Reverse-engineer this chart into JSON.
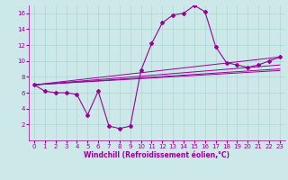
{
  "background_color": "#cce8e8",
  "line_color": "#990099",
  "marker": "D",
  "marker_size": 2,
  "xlabel": "Windchill (Refroidissement éolien,°C)",
  "xlim": [
    -0.5,
    23.5
  ],
  "ylim": [
    0,
    17
  ],
  "yticks": [
    2,
    4,
    6,
    8,
    10,
    12,
    14,
    16
  ],
  "xticks": [
    0,
    1,
    2,
    3,
    4,
    5,
    6,
    7,
    8,
    9,
    10,
    11,
    12,
    13,
    14,
    15,
    16,
    17,
    18,
    19,
    20,
    21,
    22,
    23
  ],
  "grid_color": "#aed4d4",
  "series": [
    [
      0,
      7.0
    ],
    [
      1,
      6.2
    ],
    [
      2,
      6.0
    ],
    [
      3,
      6.0
    ],
    [
      4,
      5.8
    ],
    [
      5,
      3.2
    ],
    [
      6,
      6.2
    ],
    [
      7,
      1.8
    ],
    [
      8,
      1.5
    ],
    [
      9,
      1.8
    ],
    [
      10,
      8.8
    ],
    [
      11,
      12.2
    ],
    [
      12,
      14.8
    ],
    [
      13,
      15.8
    ],
    [
      14,
      16.0
    ],
    [
      15,
      17.0
    ],
    [
      16,
      16.2
    ],
    [
      17,
      11.8
    ],
    [
      18,
      9.8
    ],
    [
      19,
      9.5
    ],
    [
      20,
      9.2
    ],
    [
      21,
      9.5
    ],
    [
      22,
      10.0
    ],
    [
      23,
      10.5
    ]
  ],
  "diagonal_lines": [
    [
      0,
      7.0,
      23,
      10.5
    ],
    [
      0,
      7.0,
      23,
      9.5
    ],
    [
      0,
      7.0,
      23,
      8.8
    ],
    [
      0,
      7.0,
      23,
      9.0
    ]
  ],
  "xlabel_fontsize": 5.5,
  "tick_fontsize": 5,
  "spine_color": "#888888"
}
